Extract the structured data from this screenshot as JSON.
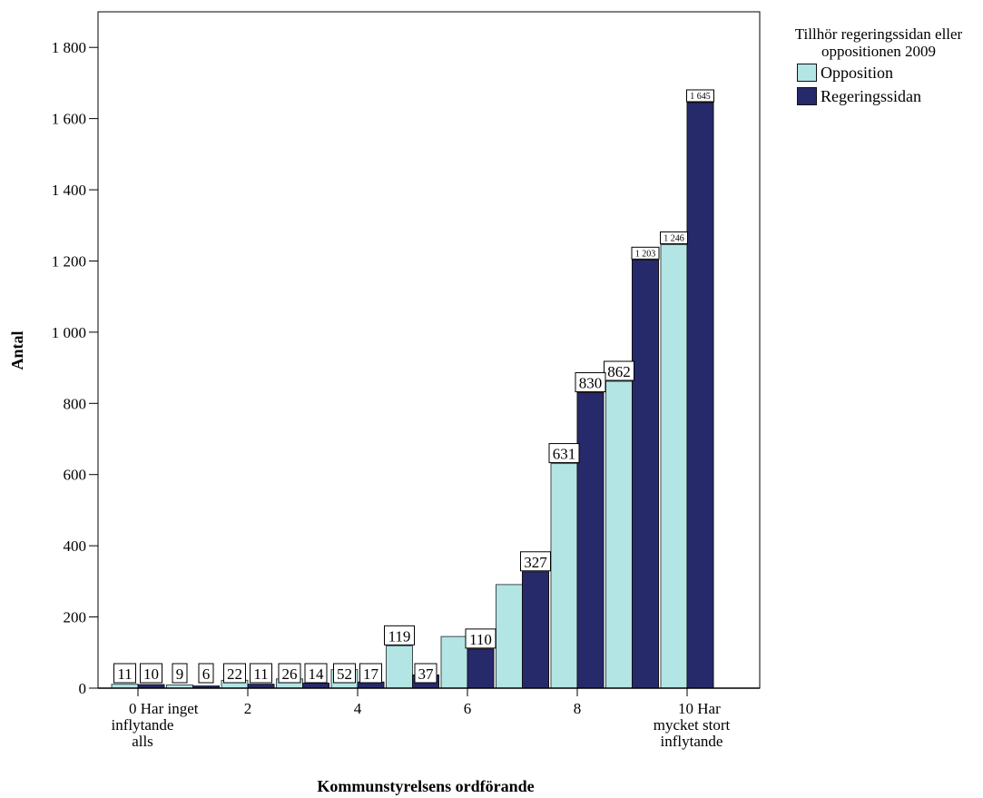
{
  "chart_data": {
    "type": "bar",
    "xlabel": "Kommunstyrelsens ordförande",
    "ylabel": "Antal",
    "ylim": [
      0,
      1900
    ],
    "yticks": [
      0,
      200,
      400,
      600,
      800,
      1000,
      1200,
      1400,
      1600,
      1800
    ],
    "ytick_labels": [
      "0",
      "200",
      "400",
      "600",
      "800",
      "1 000",
      "1 200",
      "1 400",
      "1 600",
      "1 800"
    ],
    "categories": [
      "0",
      "1",
      "2",
      "3",
      "4",
      "5",
      "6",
      "7",
      "8",
      "9",
      "10"
    ],
    "xtick_labels": [
      {
        "category": "0",
        "lines": [
          "0  Har inget",
          "inflytande",
          "alls"
        ]
      },
      {
        "category": "2",
        "lines": [
          "2"
        ]
      },
      {
        "category": "4",
        "lines": [
          "4"
        ]
      },
      {
        "category": "6",
        "lines": [
          "6"
        ]
      },
      {
        "category": "8",
        "lines": [
          "8"
        ]
      },
      {
        "category": "10",
        "lines": [
          "10  Har",
          "mycket stort",
          "inflytande"
        ]
      }
    ],
    "legend_title": "Tillhör regeringssidan eller oppositionen 2009",
    "legend_position": "right",
    "series": [
      {
        "name": "Opposition",
        "color": "#b3e5e5",
        "values": [
          11,
          9,
          22,
          26,
          52,
          119,
          145,
          291,
          631,
          862,
          1246
        ],
        "labels": [
          "11",
          "9",
          "22",
          "26",
          "52",
          "119",
          "",
          "",
          "631",
          "862",
          "1 246"
        ]
      },
      {
        "name": "Regeringssidan",
        "color": "#262a6b",
        "values": [
          10,
          6,
          11,
          14,
          17,
          37,
          110,
          327,
          830,
          1203,
          1645
        ],
        "labels": [
          "10",
          "6",
          "11",
          "14",
          "17",
          "37",
          "110",
          "327",
          "830",
          "1 203",
          "1 645"
        ]
      }
    ],
    "grid": false
  }
}
